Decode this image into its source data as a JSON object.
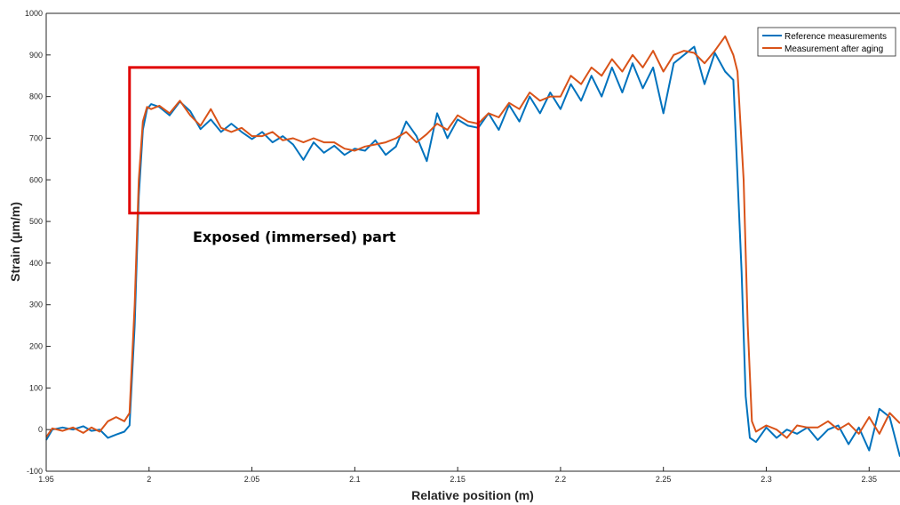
{
  "chart_data": {
    "type": "line",
    "xlabel": "Relative position (m)",
    "ylabel": "Strain (µm/m)",
    "xlim": [
      1.95,
      2.365
    ],
    "ylim": [
      -100,
      1000
    ],
    "x_ticks": [
      "1.95",
      "2",
      "2.05",
      "2.1",
      "2.15",
      "2.2",
      "2.25",
      "2.3",
      "2.35"
    ],
    "y_ticks": [
      "-100",
      "0",
      "100",
      "200",
      "300",
      "400",
      "500",
      "600",
      "700",
      "800",
      "900",
      "1000"
    ],
    "grid": false,
    "legend_position": "top-right",
    "series": [
      {
        "name": "Reference measurements",
        "color": "#0072bd",
        "points": [
          [
            1.95,
            -25
          ],
          [
            1.953,
            0
          ],
          [
            1.958,
            5
          ],
          [
            1.963,
            0
          ],
          [
            1.968,
            8
          ],
          [
            1.972,
            -3
          ],
          [
            1.976,
            0
          ],
          [
            1.98,
            -20
          ],
          [
            1.984,
            -12
          ],
          [
            1.988,
            -5
          ],
          [
            1.9905,
            10
          ],
          [
            1.993,
            250
          ],
          [
            1.995,
            560
          ],
          [
            1.997,
            720
          ],
          [
            1.999,
            770
          ],
          [
            2.001,
            782
          ],
          [
            2.005,
            775
          ],
          [
            2.01,
            755
          ],
          [
            2.015,
            788
          ],
          [
            2.02,
            765
          ],
          [
            2.025,
            722
          ],
          [
            2.03,
            745
          ],
          [
            2.035,
            715
          ],
          [
            2.04,
            735
          ],
          [
            2.045,
            715
          ],
          [
            2.05,
            698
          ],
          [
            2.055,
            715
          ],
          [
            2.06,
            690
          ],
          [
            2.065,
            705
          ],
          [
            2.07,
            685
          ],
          [
            2.075,
            648
          ],
          [
            2.08,
            690
          ],
          [
            2.085,
            665
          ],
          [
            2.09,
            682
          ],
          [
            2.095,
            660
          ],
          [
            2.1,
            675
          ],
          [
            2.105,
            670
          ],
          [
            2.11,
            695
          ],
          [
            2.115,
            660
          ],
          [
            2.12,
            680
          ],
          [
            2.125,
            740
          ],
          [
            2.13,
            705
          ],
          [
            2.135,
            645
          ],
          [
            2.14,
            760
          ],
          [
            2.145,
            700
          ],
          [
            2.15,
            745
          ],
          [
            2.155,
            730
          ],
          [
            2.16,
            725
          ],
          [
            2.165,
            760
          ],
          [
            2.17,
            720
          ],
          [
            2.175,
            780
          ],
          [
            2.18,
            740
          ],
          [
            2.185,
            800
          ],
          [
            2.19,
            760
          ],
          [
            2.195,
            810
          ],
          [
            2.2,
            770
          ],
          [
            2.205,
            830
          ],
          [
            2.21,
            790
          ],
          [
            2.215,
            850
          ],
          [
            2.22,
            800
          ],
          [
            2.225,
            870
          ],
          [
            2.23,
            810
          ],
          [
            2.235,
            880
          ],
          [
            2.24,
            820
          ],
          [
            2.245,
            870
          ],
          [
            2.25,
            760
          ],
          [
            2.255,
            880
          ],
          [
            2.26,
            900
          ],
          [
            2.265,
            920
          ],
          [
            2.27,
            830
          ],
          [
            2.275,
            905
          ],
          [
            2.28,
            860
          ],
          [
            2.284,
            840
          ],
          [
            2.288,
            380
          ],
          [
            2.29,
            80
          ],
          [
            2.292,
            -20
          ],
          [
            2.295,
            -30
          ],
          [
            2.3,
            5
          ],
          [
            2.305,
            -20
          ],
          [
            2.31,
            0
          ],
          [
            2.315,
            -10
          ],
          [
            2.32,
            5
          ],
          [
            2.325,
            -25
          ],
          [
            2.33,
            0
          ],
          [
            2.335,
            10
          ],
          [
            2.34,
            -35
          ],
          [
            2.345,
            5
          ],
          [
            2.35,
            -50
          ],
          [
            2.355,
            50
          ],
          [
            2.36,
            30
          ],
          [
            2.365,
            -65
          ]
        ]
      },
      {
        "name": "Measurement after aging",
        "color": "#d95319",
        "points": [
          [
            1.95,
            -18
          ],
          [
            1.953,
            3
          ],
          [
            1.958,
            -3
          ],
          [
            1.963,
            5
          ],
          [
            1.968,
            -8
          ],
          [
            1.972,
            5
          ],
          [
            1.976,
            -5
          ],
          [
            1.98,
            20
          ],
          [
            1.984,
            30
          ],
          [
            1.988,
            20
          ],
          [
            1.9905,
            40
          ],
          [
            1.993,
            300
          ],
          [
            1.995,
            600
          ],
          [
            1.997,
            740
          ],
          [
            1.999,
            775
          ],
          [
            2.001,
            770
          ],
          [
            2.005,
            778
          ],
          [
            2.01,
            760
          ],
          [
            2.015,
            790
          ],
          [
            2.02,
            755
          ],
          [
            2.025,
            730
          ],
          [
            2.03,
            770
          ],
          [
            2.035,
            725
          ],
          [
            2.04,
            715
          ],
          [
            2.045,
            725
          ],
          [
            2.05,
            705
          ],
          [
            2.055,
            705
          ],
          [
            2.06,
            715
          ],
          [
            2.065,
            695
          ],
          [
            2.07,
            700
          ],
          [
            2.075,
            690
          ],
          [
            2.08,
            700
          ],
          [
            2.085,
            690
          ],
          [
            2.09,
            690
          ],
          [
            2.095,
            675
          ],
          [
            2.1,
            670
          ],
          [
            2.105,
            680
          ],
          [
            2.11,
            685
          ],
          [
            2.115,
            690
          ],
          [
            2.12,
            700
          ],
          [
            2.125,
            715
          ],
          [
            2.13,
            690
          ],
          [
            2.135,
            710
          ],
          [
            2.14,
            735
          ],
          [
            2.145,
            720
          ],
          [
            2.15,
            755
          ],
          [
            2.155,
            740
          ],
          [
            2.16,
            735
          ],
          [
            2.165,
            760
          ],
          [
            2.17,
            750
          ],
          [
            2.175,
            785
          ],
          [
            2.18,
            770
          ],
          [
            2.185,
            810
          ],
          [
            2.19,
            790
          ],
          [
            2.195,
            800
          ],
          [
            2.2,
            800
          ],
          [
            2.205,
            850
          ],
          [
            2.21,
            830
          ],
          [
            2.215,
            870
          ],
          [
            2.22,
            850
          ],
          [
            2.225,
            890
          ],
          [
            2.23,
            860
          ],
          [
            2.235,
            900
          ],
          [
            2.24,
            870
          ],
          [
            2.245,
            910
          ],
          [
            2.25,
            860
          ],
          [
            2.255,
            900
          ],
          [
            2.26,
            910
          ],
          [
            2.265,
            905
          ],
          [
            2.27,
            880
          ],
          [
            2.275,
            910
          ],
          [
            2.28,
            945
          ],
          [
            2.284,
            900
          ],
          [
            2.286,
            860
          ],
          [
            2.289,
            600
          ],
          [
            2.291,
            250
          ],
          [
            2.293,
            20
          ],
          [
            2.295,
            -5
          ],
          [
            2.3,
            10
          ],
          [
            2.305,
            0
          ],
          [
            2.31,
            -20
          ],
          [
            2.315,
            10
          ],
          [
            2.32,
            5
          ],
          [
            2.325,
            5
          ],
          [
            2.33,
            20
          ],
          [
            2.335,
            0
          ],
          [
            2.34,
            15
          ],
          [
            2.345,
            -10
          ],
          [
            2.35,
            30
          ],
          [
            2.355,
            -10
          ],
          [
            2.36,
            40
          ],
          [
            2.365,
            15
          ]
        ]
      }
    ],
    "annotation": {
      "text": "Exposed (immersed) part",
      "x_range": [
        1.9905,
        2.16
      ],
      "y_range": [
        520,
        870
      ],
      "box_color": "#e00000"
    }
  }
}
